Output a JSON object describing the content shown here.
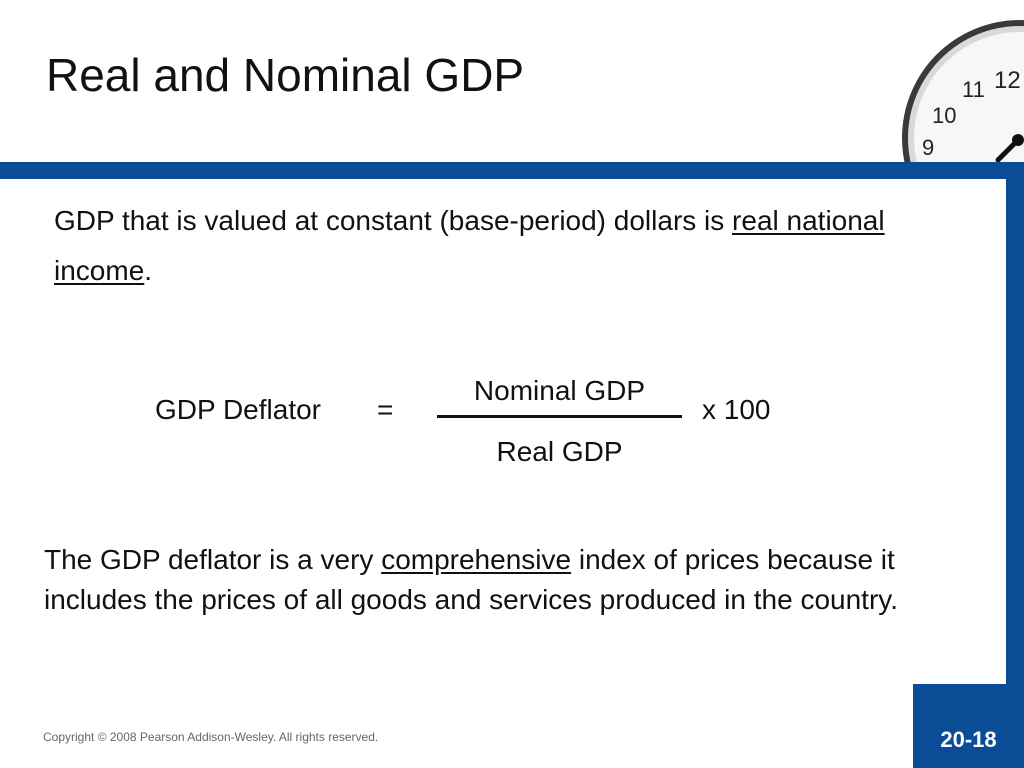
{
  "slide": {
    "title": "Real and Nominal GDP",
    "para1": {
      "text_before": "GDP that is valued at constant (base-period) dollars is ",
      "underlined": "real national income",
      "text_after": "."
    },
    "formula": {
      "label": "GDP Deflator",
      "equals": "=",
      "numerator": "Nominal GDP",
      "denominator": "Real GDP",
      "multiplier": "x  100"
    },
    "para2": {
      "text_before": "The GDP deflator is a very ",
      "underlined": "comprehensive",
      "text_after": " index of prices because it includes the prices of all goods and services produced in the country."
    },
    "footer": {
      "copyright": "Copyright © 2008 Pearson Addison-Wesley. All rights reserved.",
      "page_number": "20-18"
    },
    "clock": {
      "numbers": [
        "12",
        "11",
        "10",
        "9"
      ]
    },
    "colors": {
      "accent": "#0b4c97",
      "text": "#111111"
    }
  }
}
